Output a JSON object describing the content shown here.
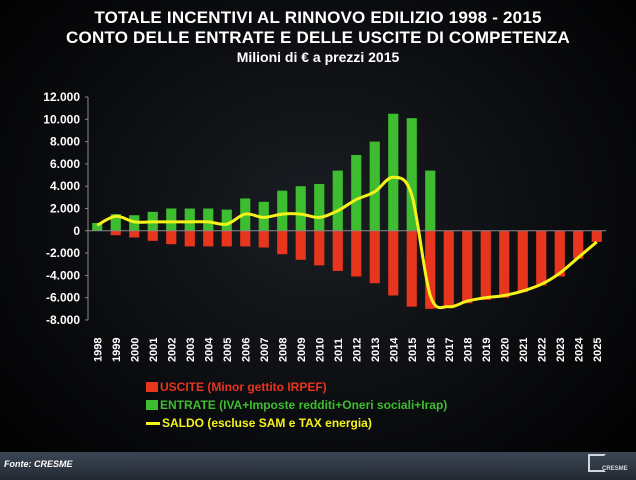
{
  "title_lines": [
    "TOTALE INCENTIVI AL RINNOVO EDILIZIO 1998 - 2015",
    "CONTO DELLE ENTRATE E DELLE USCITE DI COMPETENZA",
    "Milioni di € a prezzi 2015"
  ],
  "source": "Fonte: CRESME",
  "logo_text": "CRESME",
  "colors": {
    "uscite": "#e8351e",
    "entrate": "#3dbd2f",
    "saldo": "#f5f31a",
    "axis_text": "#ffffff",
    "grid": "#8a8a8a"
  },
  "chart_data": {
    "type": "bar",
    "title": "TOTALE INCENTIVI AL RINNOVO EDILIZIO 1998 - 2015",
    "ylim": [
      -8000,
      12000
    ],
    "yticks": [
      12000,
      10000,
      8000,
      6000,
      4000,
      2000,
      0,
      -2000,
      -4000,
      -6000,
      -8000
    ],
    "ytick_labels": [
      "12.000",
      "10.000",
      "8.000",
      "6.000",
      "4.000",
      "2.000",
      "0",
      "-2.000",
      "-4.000",
      "-6.000",
      "-8.000"
    ],
    "grid": false,
    "legend_position": "bottom",
    "categories": [
      "1998",
      "1999",
      "2000",
      "2001",
      "2002",
      "2003",
      "2004",
      "2005",
      "2006",
      "2007",
      "2008",
      "2009",
      "2010",
      "2011",
      "2012",
      "2013",
      "2014",
      "2015",
      "2016",
      "2017",
      "2018",
      "2019",
      "2020",
      "2021",
      "2022",
      "2023",
      "2024",
      "2025"
    ],
    "series": [
      {
        "name": "USCITE (Minor gettito IRPEF)",
        "type": "bar",
        "values": [
          0,
          -400,
          -600,
          -900,
          -1200,
          -1400,
          -1400,
          -1400,
          -1400,
          -1500,
          -2100,
          -2600,
          -3100,
          -3600,
          -4100,
          -4700,
          -5800,
          -6800,
          -7000,
          -6800,
          -6500,
          -6200,
          -6000,
          -5500,
          -4900,
          -4100,
          -2500,
          -1000
        ]
      },
      {
        "name": "ENTRATE (IVA+Imposte redditi+Oneri sociali+Irap)",
        "type": "bar",
        "values": [
          700,
          1500,
          1400,
          1700,
          2000,
          2000,
          2000,
          1900,
          2900,
          2600,
          3600,
          4000,
          4200,
          5400,
          6800,
          8000,
          10500,
          10100,
          5400,
          0,
          0,
          0,
          0,
          0,
          0,
          0,
          0,
          0
        ]
      },
      {
        "name": "SALDO (escluse SAM e TAX energia)",
        "type": "line",
        "values": [
          500,
          1300,
          800,
          800,
          800,
          800,
          800,
          600,
          1500,
          1200,
          1500,
          1500,
          1200,
          1800,
          2800,
          3500,
          4800,
          3200,
          -5800,
          -6800,
          -6300,
          -6000,
          -5800,
          -5400,
          -4800,
          -3800,
          -2400,
          -1000
        ]
      }
    ]
  }
}
